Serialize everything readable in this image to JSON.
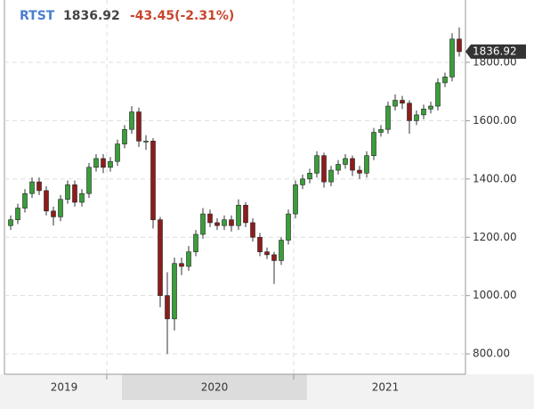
{
  "chart_data": {
    "type": "candlestick",
    "symbol": "RTST",
    "last": "1836.92",
    "change": "-43.45(-2.31%)",
    "up_color": "#3a9e3a",
    "down_color": "#8e1c1c",
    "open": [
      1240,
      1260,
      1300,
      1350,
      1390,
      1360,
      1290,
      1270,
      1330,
      1380,
      1320,
      1350,
      1440,
      1470,
      1440,
      1460,
      1520,
      1570,
      1630,
      1530,
      1530,
      1260,
      1000,
      920,
      1110,
      1100,
      1150,
      1210,
      1280,
      1250,
      1240,
      1260,
      1240,
      1310,
      1250,
      1200,
      1150,
      1140,
      1120,
      1190,
      1280,
      1380,
      1400,
      1420,
      1480,
      1390,
      1430,
      1450,
      1470,
      1430,
      1420,
      1480,
      1560,
      1570,
      1650,
      1670,
      1660,
      1600,
      1620,
      1640,
      1650,
      1730,
      1750,
      1880
    ],
    "high": [
      1275,
      1315,
      1365,
      1405,
      1405,
      1375,
      1305,
      1345,
      1395,
      1395,
      1365,
      1455,
      1485,
      1485,
      1475,
      1535,
      1585,
      1650,
      1645,
      1550,
      1540,
      1270,
      1080,
      1130,
      1130,
      1170,
      1225,
      1300,
      1295,
      1265,
      1275,
      1275,
      1330,
      1320,
      1265,
      1215,
      1165,
      1150,
      1200,
      1295,
      1395,
      1415,
      1435,
      1495,
      1490,
      1445,
      1465,
      1485,
      1480,
      1445,
      1495,
      1575,
      1585,
      1665,
      1690,
      1685,
      1670,
      1635,
      1655,
      1665,
      1745,
      1765,
      1900,
      1920
    ],
    "low": [
      1225,
      1245,
      1285,
      1335,
      1345,
      1275,
      1240,
      1255,
      1315,
      1305,
      1305,
      1335,
      1425,
      1420,
      1425,
      1445,
      1505,
      1555,
      1510,
      1500,
      1230,
      960,
      800,
      880,
      1070,
      1085,
      1135,
      1195,
      1235,
      1225,
      1225,
      1220,
      1225,
      1235,
      1185,
      1135,
      1125,
      1040,
      1105,
      1175,
      1265,
      1365,
      1385,
      1405,
      1370,
      1375,
      1415,
      1435,
      1410,
      1400,
      1405,
      1465,
      1545,
      1555,
      1635,
      1640,
      1555,
      1585,
      1605,
      1625,
      1635,
      1715,
      1735,
      1820
    ],
    "close": [
      1260,
      1300,
      1350,
      1390,
      1360,
      1290,
      1270,
      1330,
      1380,
      1320,
      1350,
      1440,
      1470,
      1440,
      1460,
      1520,
      1570,
      1630,
      1530,
      1530,
      1260,
      1000,
      920,
      1110,
      1100,
      1150,
      1210,
      1280,
      1250,
      1240,
      1260,
      1240,
      1310,
      1250,
      1200,
      1150,
      1140,
      1120,
      1190,
      1280,
      1380,
      1400,
      1420,
      1480,
      1390,
      1430,
      1450,
      1470,
      1430,
      1420,
      1480,
      1560,
      1570,
      1650,
      1670,
      1660,
      1600,
      1620,
      1640,
      1650,
      1730,
      1750,
      1880,
      1836.92
    ],
    "ylim": [
      730,
      2014
    ],
    "yticks": [
      {
        "value": 800,
        "label": "800.00"
      },
      {
        "value": 1000,
        "label": "1000.00"
      },
      {
        "value": 1200,
        "label": "1200.00"
      },
      {
        "value": 1400,
        "label": "1400.00"
      },
      {
        "value": 1600,
        "label": "1600.00"
      },
      {
        "value": 1800,
        "label": "1800.00"
      }
    ],
    "x_labels": [
      "2019",
      "2020",
      "2021"
    ],
    "grid": true
  }
}
